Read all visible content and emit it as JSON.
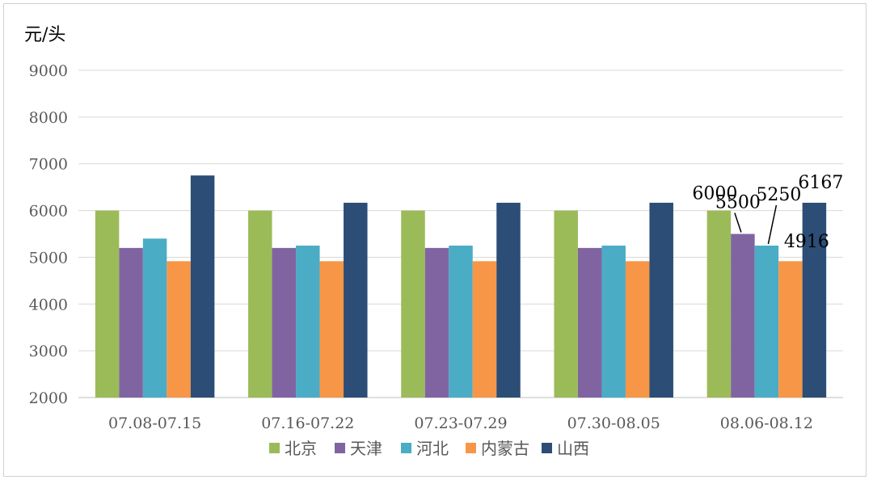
{
  "chart_data": {
    "type": "bar",
    "unit": "元/头",
    "categories": [
      "07.08-07.15",
      "07.16-07.22",
      "07.23-07.29",
      "07.30-08.05",
      "08.06-08.12"
    ],
    "series": [
      {
        "name": "北京",
        "color": "#9BBB59",
        "values": [
          6000,
          6000,
          6000,
          6000,
          6000
        ]
      },
      {
        "name": "天津",
        "color": "#8064A2",
        "values": [
          5200,
          5200,
          5200,
          5200,
          5500
        ]
      },
      {
        "name": "河北",
        "color": "#4BACC6",
        "values": [
          5400,
          5250,
          5250,
          5250,
          5250
        ]
      },
      {
        "name": "内蒙古",
        "color": "#F79646",
        "values": [
          4916,
          4916,
          4916,
          4916,
          4916
        ]
      },
      {
        "name": "山西",
        "color": "#2C4D75",
        "values": [
          6750,
          6167,
          6167,
          6167,
          6167
        ]
      }
    ],
    "ylim": [
      2000,
      9000
    ],
    "yticks": [
      2000,
      3000,
      4000,
      5000,
      6000,
      7000,
      8000,
      9000
    ],
    "grid": true,
    "legend": "bottom",
    "data_labels": [
      {
        "series": 0,
        "category": 4,
        "text": "6000"
      },
      {
        "series": 1,
        "category": 4,
        "text": "5500"
      },
      {
        "series": 2,
        "category": 4,
        "text": "5250"
      },
      {
        "series": 3,
        "category": 4,
        "text": "4916"
      },
      {
        "series": 4,
        "category": 4,
        "text": "6167"
      }
    ]
  }
}
